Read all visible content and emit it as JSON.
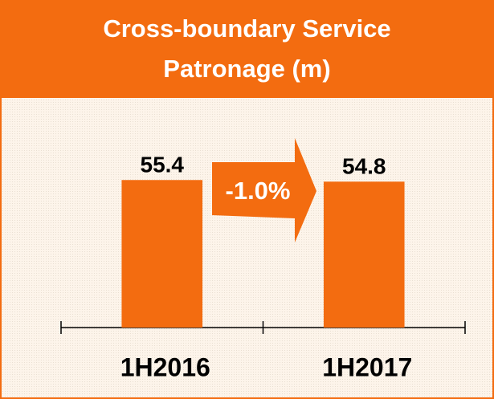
{
  "chart_data": {
    "type": "bar",
    "title": "Cross-boundary Service Patronage (m)",
    "categories": [
      "1H2016",
      "1H2017"
    ],
    "values": [
      55.4,
      54.8
    ],
    "color": "#f36c10",
    "ylim": [
      0,
      60
    ],
    "annotation": "-1.0%"
  }
}
